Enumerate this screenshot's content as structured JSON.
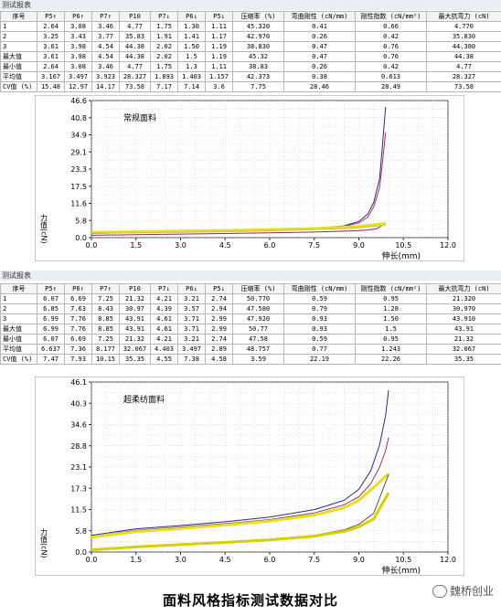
{
  "report_label": "测试报表",
  "tables": [
    {
      "headers": [
        "序号",
        "P5↑",
        "P6↑",
        "P7↑",
        "P10",
        "P7↓",
        "P6↓",
        "P5↓",
        "压缩率 (%)",
        "弯曲刚性 (cN/mm)",
        "刚性指数 (cN/mm²)",
        "最大抗弯力 (cN)"
      ],
      "rows": [
        [
          "1",
          "2.64",
          "3.08",
          "3.46",
          "4.77",
          "1.75",
          "1.30",
          "1.11",
          "45.320",
          "0.41",
          "0.66",
          "4.770"
        ],
        [
          "2",
          "3.25",
          "3.43",
          "3.77",
          "35.83",
          "1.91",
          "1.41",
          "1.17",
          "42.970",
          "0.26",
          "0.42",
          "35.830"
        ],
        [
          "3",
          "3.61",
          "3.98",
          "4.54",
          "44.38",
          "2.02",
          "1.50",
          "1.19",
          "38.830",
          "0.47",
          "0.76",
          "44.380"
        ],
        [
          "最大值",
          "3.61",
          "3.98",
          "4.54",
          "44.38",
          "2.02",
          "1.5",
          "1.19",
          "45.32",
          "0.47",
          "0.76",
          "44.38"
        ],
        [
          "最小值",
          "2.64",
          "3.08",
          "3.46",
          "4.77",
          "1.75",
          "1.3",
          "1.11",
          "38.83",
          "0.26",
          "0.42",
          "4.77"
        ],
        [
          "平均值",
          "3.167",
          "3.497",
          "3.923",
          "28.327",
          "1.893",
          "1.403",
          "1.157",
          "42.373",
          "0.38",
          "0.613",
          "28.327"
        ],
        [
          "CV值 (%)",
          "15.48",
          "12.97",
          "14.17",
          "73.58",
          "7.17",
          "7.14",
          "3.6",
          "7.75",
          "28.46",
          "28.49",
          "73.58"
        ]
      ]
    },
    {
      "headers": [
        "序号",
        "P5↑",
        "P6↑",
        "P7↑",
        "P10",
        "P7↓",
        "P6↓",
        "P5↓",
        "压缩率 (%)",
        "弯曲刚性 (cN/mm)",
        "刚性指数 (cN/mm²)",
        "最大抗弯力 (cN)"
      ],
      "rows": [
        [
          "1",
          "6.07",
          "6.69",
          "7.25",
          "21.32",
          "4.21",
          "3.21",
          "2.74",
          "50.770",
          "0.59",
          "0.95",
          "21.320"
        ],
        [
          "2",
          "6.85",
          "7.63",
          "8.43",
          "30.97",
          "4.39",
          "3.57",
          "2.94",
          "47.580",
          "0.79",
          "1.28",
          "30.970"
        ],
        [
          "3",
          "6.99",
          "7.76",
          "8.85",
          "43.91",
          "4.61",
          "3.71",
          "2.99",
          "47.920",
          "0.93",
          "1.50",
          "43.910"
        ],
        [
          "最大值",
          "6.99",
          "7.76",
          "8.85",
          "43.91",
          "4.61",
          "3.71",
          "2.99",
          "50.77",
          "0.93",
          "1.5",
          "43.91"
        ],
        [
          "最小值",
          "6.07",
          "6.69",
          "7.25",
          "21.32",
          "4.21",
          "3.21",
          "2.74",
          "47.58",
          "0.59",
          "0.95",
          "21.32"
        ],
        [
          "平均值",
          "6.637",
          "7.36",
          "8.177",
          "32.067",
          "4.403",
          "3.497",
          "2.89",
          "48.757",
          "0.77",
          "1.243",
          "32.067"
        ],
        [
          "CV值 (%)",
          "7.47",
          "7.93",
          "10.15",
          "35.35",
          "4.55",
          "7.38",
          "4.58",
          "3.59",
          "22.19",
          "22.26",
          "35.35"
        ]
      ]
    }
  ],
  "chart_data": [
    {
      "type": "line",
      "title": "常规面料",
      "xlabel": "伸长(mm)",
      "ylabel": "力值(cN)",
      "xlim": [
        0,
        12
      ],
      "ylim": [
        0,
        46.6
      ],
      "xticks": [
        "0.0",
        "1.5",
        "3.0",
        "4.5",
        "6.0",
        "7.5",
        "9.0",
        "10.5",
        "12.0"
      ],
      "yticks": [
        "0.0",
        "5.8",
        "11.6",
        "17.5",
        "23.3",
        "29.1",
        "34.9",
        "40.8",
        "46.6"
      ],
      "grid": true,
      "series": [
        {
          "color": "#2a2a8a",
          "x": [
            0,
            1.5,
            3,
            4.5,
            6,
            7.5,
            8.5,
            9.0,
            9.3,
            9.5,
            9.7,
            9.8,
            9.9
          ],
          "y": [
            1.6,
            1.9,
            2.1,
            2.4,
            2.7,
            3.2,
            4.0,
            5.5,
            8.0,
            12.0,
            20.0,
            32.0,
            44.4
          ]
        },
        {
          "color": "#a03070",
          "x": [
            0,
            1.5,
            3,
            4.5,
            6,
            7.5,
            8.5,
            9.0,
            9.3,
            9.5,
            9.7,
            9.8,
            9.9
          ],
          "y": [
            1.4,
            1.7,
            2.0,
            2.3,
            2.6,
            3.1,
            3.8,
            5.0,
            7.0,
            10.5,
            17.0,
            26.0,
            35.8
          ]
        },
        {
          "color": "#8b2d3d",
          "x": [
            9.9,
            9.6,
            9.3,
            9.0,
            8.5,
            7.5,
            6,
            4.5,
            3,
            1.5,
            0
          ],
          "y": [
            4.8,
            3.0,
            2.6,
            2.4,
            2.2,
            1.9,
            1.6,
            1.4,
            1.2,
            1.0,
            0.8
          ]
        },
        {
          "color": "#e6e01a",
          "x": [
            0,
            1.5,
            3,
            4.5,
            6,
            7.5,
            9,
            9.9
          ],
          "y": [
            1.8,
            2.0,
            2.2,
            2.4,
            2.7,
            3.1,
            3.8,
            4.8
          ]
        },
        {
          "color": "#c8c060",
          "x": [
            9.9,
            9.0,
            7.5,
            6,
            4.5,
            3,
            1.5,
            0
          ],
          "y": [
            4.2,
            3.3,
            2.7,
            2.3,
            2.0,
            1.8,
            1.6,
            1.5
          ]
        }
      ]
    },
    {
      "type": "line",
      "title": "超柔纺面料",
      "xlabel": "伸长(mm)",
      "ylabel": "力值(cN)",
      "xlim": [
        0,
        12
      ],
      "ylim": [
        0,
        46.1
      ],
      "xticks": [
        "0.0",
        "1.5",
        "3.0",
        "4.5",
        "6.0",
        "7.5",
        "9.0",
        "10.5",
        "12.0"
      ],
      "yticks": [
        "0.0",
        "5.8",
        "11.5",
        "17.3",
        "23.1",
        "28.8",
        "34.6",
        "40.3",
        "46.1"
      ],
      "grid": true,
      "series": [
        {
          "color": "#2a2a8a",
          "x": [
            0,
            1.5,
            3,
            4.5,
            6,
            7.5,
            8.5,
            9.0,
            9.4,
            9.7,
            9.9,
            10.0
          ],
          "y": [
            4.5,
            6.3,
            7.2,
            8.2,
            9.5,
            11.5,
            14.0,
            17.0,
            22.0,
            29.0,
            37.0,
            43.9
          ]
        },
        {
          "color": "#8c3a7a",
          "x": [
            0,
            1.5,
            3,
            4.5,
            6,
            7.5,
            8.5,
            9.0,
            9.4,
            9.7,
            9.9,
            10.0
          ],
          "y": [
            4.2,
            5.9,
            6.8,
            7.7,
            8.8,
            10.6,
            12.8,
            15.0,
            18.5,
            23.0,
            27.5,
            31.0
          ]
        },
        {
          "color": "#e6e01a",
          "x": [
            0,
            1.5,
            3,
            4.5,
            6,
            7.5,
            8.5,
            9.0,
            9.5,
            10.0
          ],
          "y": [
            4.0,
            5.5,
            6.4,
            7.3,
            8.4,
            10.0,
            12.0,
            14.0,
            17.5,
            21.3
          ]
        },
        {
          "color": "#555555",
          "x": [
            10.0,
            9.5,
            9.0,
            8.5,
            7.5,
            6,
            4.5,
            3,
            1.5,
            0
          ],
          "y": [
            21.0,
            10.5,
            7.5,
            6.0,
            4.5,
            3.5,
            2.8,
            2.2,
            1.5,
            0.5
          ]
        },
        {
          "color": "#d6d000",
          "x": [
            10.0,
            9.5,
            9.0,
            8.5,
            7.5,
            6,
            4.5,
            3,
            1.5,
            0
          ],
          "y": [
            16.0,
            9.0,
            6.8,
            5.6,
            4.3,
            3.3,
            2.6,
            2.0,
            1.4,
            0.6
          ]
        }
      ]
    }
  ],
  "caption": "面料风格指标测试数据对比",
  "watermark_text": "魏桥创业"
}
